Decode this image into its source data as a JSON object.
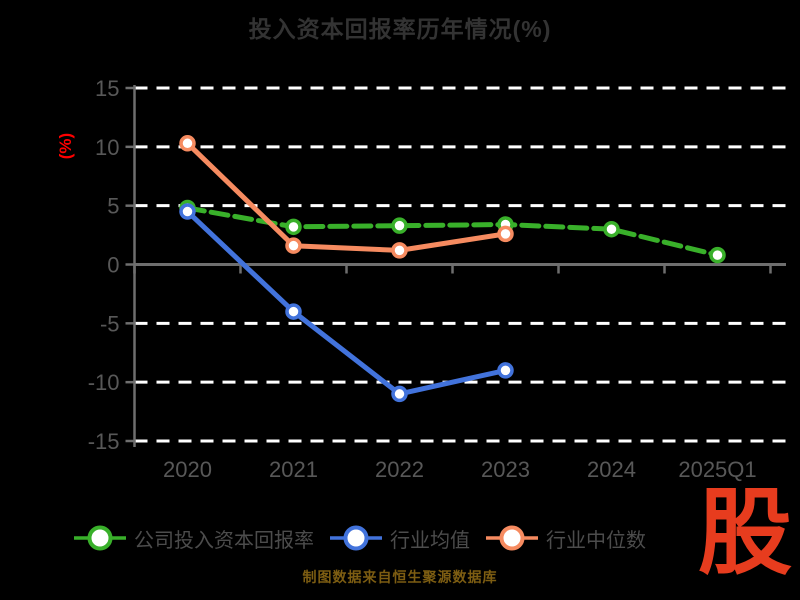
{
  "title": "投入资本回报率历年情况(%)",
  "y_axis_name": "(%)",
  "footer": {
    "source_text": "制图数据来自恒生聚源数据库"
  },
  "logo": {
    "text": "股"
  },
  "colors": {
    "background": "#000000",
    "title": "#333333",
    "axis_line": "#6e6e6e",
    "tick_label": "#585858",
    "gridline": "#ffffff",
    "y_axis_name": "#ff0000",
    "legend_text": "#4c4c4c",
    "footer_text": "#7d5d12",
    "logo_red": "#e73c1e"
  },
  "chart_data": {
    "type": "line",
    "categories": [
      "2020",
      "2021",
      "2022",
      "2023",
      "2024",
      "2025Q1"
    ],
    "series": [
      {
        "name": "公司投入资本回报率",
        "color": "#39b02a",
        "line_style": "dashed",
        "values": [
          4.8,
          3.2,
          3.3,
          3.4,
          3.0,
          0.8
        ]
      },
      {
        "name": "行业均值",
        "color": "#4273dc",
        "line_style": "solid",
        "values": [
          4.5,
          -4.0,
          -11.0,
          -9.0,
          null,
          null
        ]
      },
      {
        "name": "行业中位数",
        "color": "#f68b60",
        "line_style": "solid",
        "values": [
          10.3,
          1.6,
          1.2,
          2.6,
          null,
          null
        ]
      }
    ],
    "ylabel": "(%)",
    "ylim": [
      -15,
      15
    ],
    "yticks": [
      15,
      10,
      5,
      0,
      -5,
      -10,
      -15
    ],
    "grid": true,
    "gridline_style": "dashed",
    "legend_position": "bottom",
    "marker": "circle-white-fill"
  }
}
